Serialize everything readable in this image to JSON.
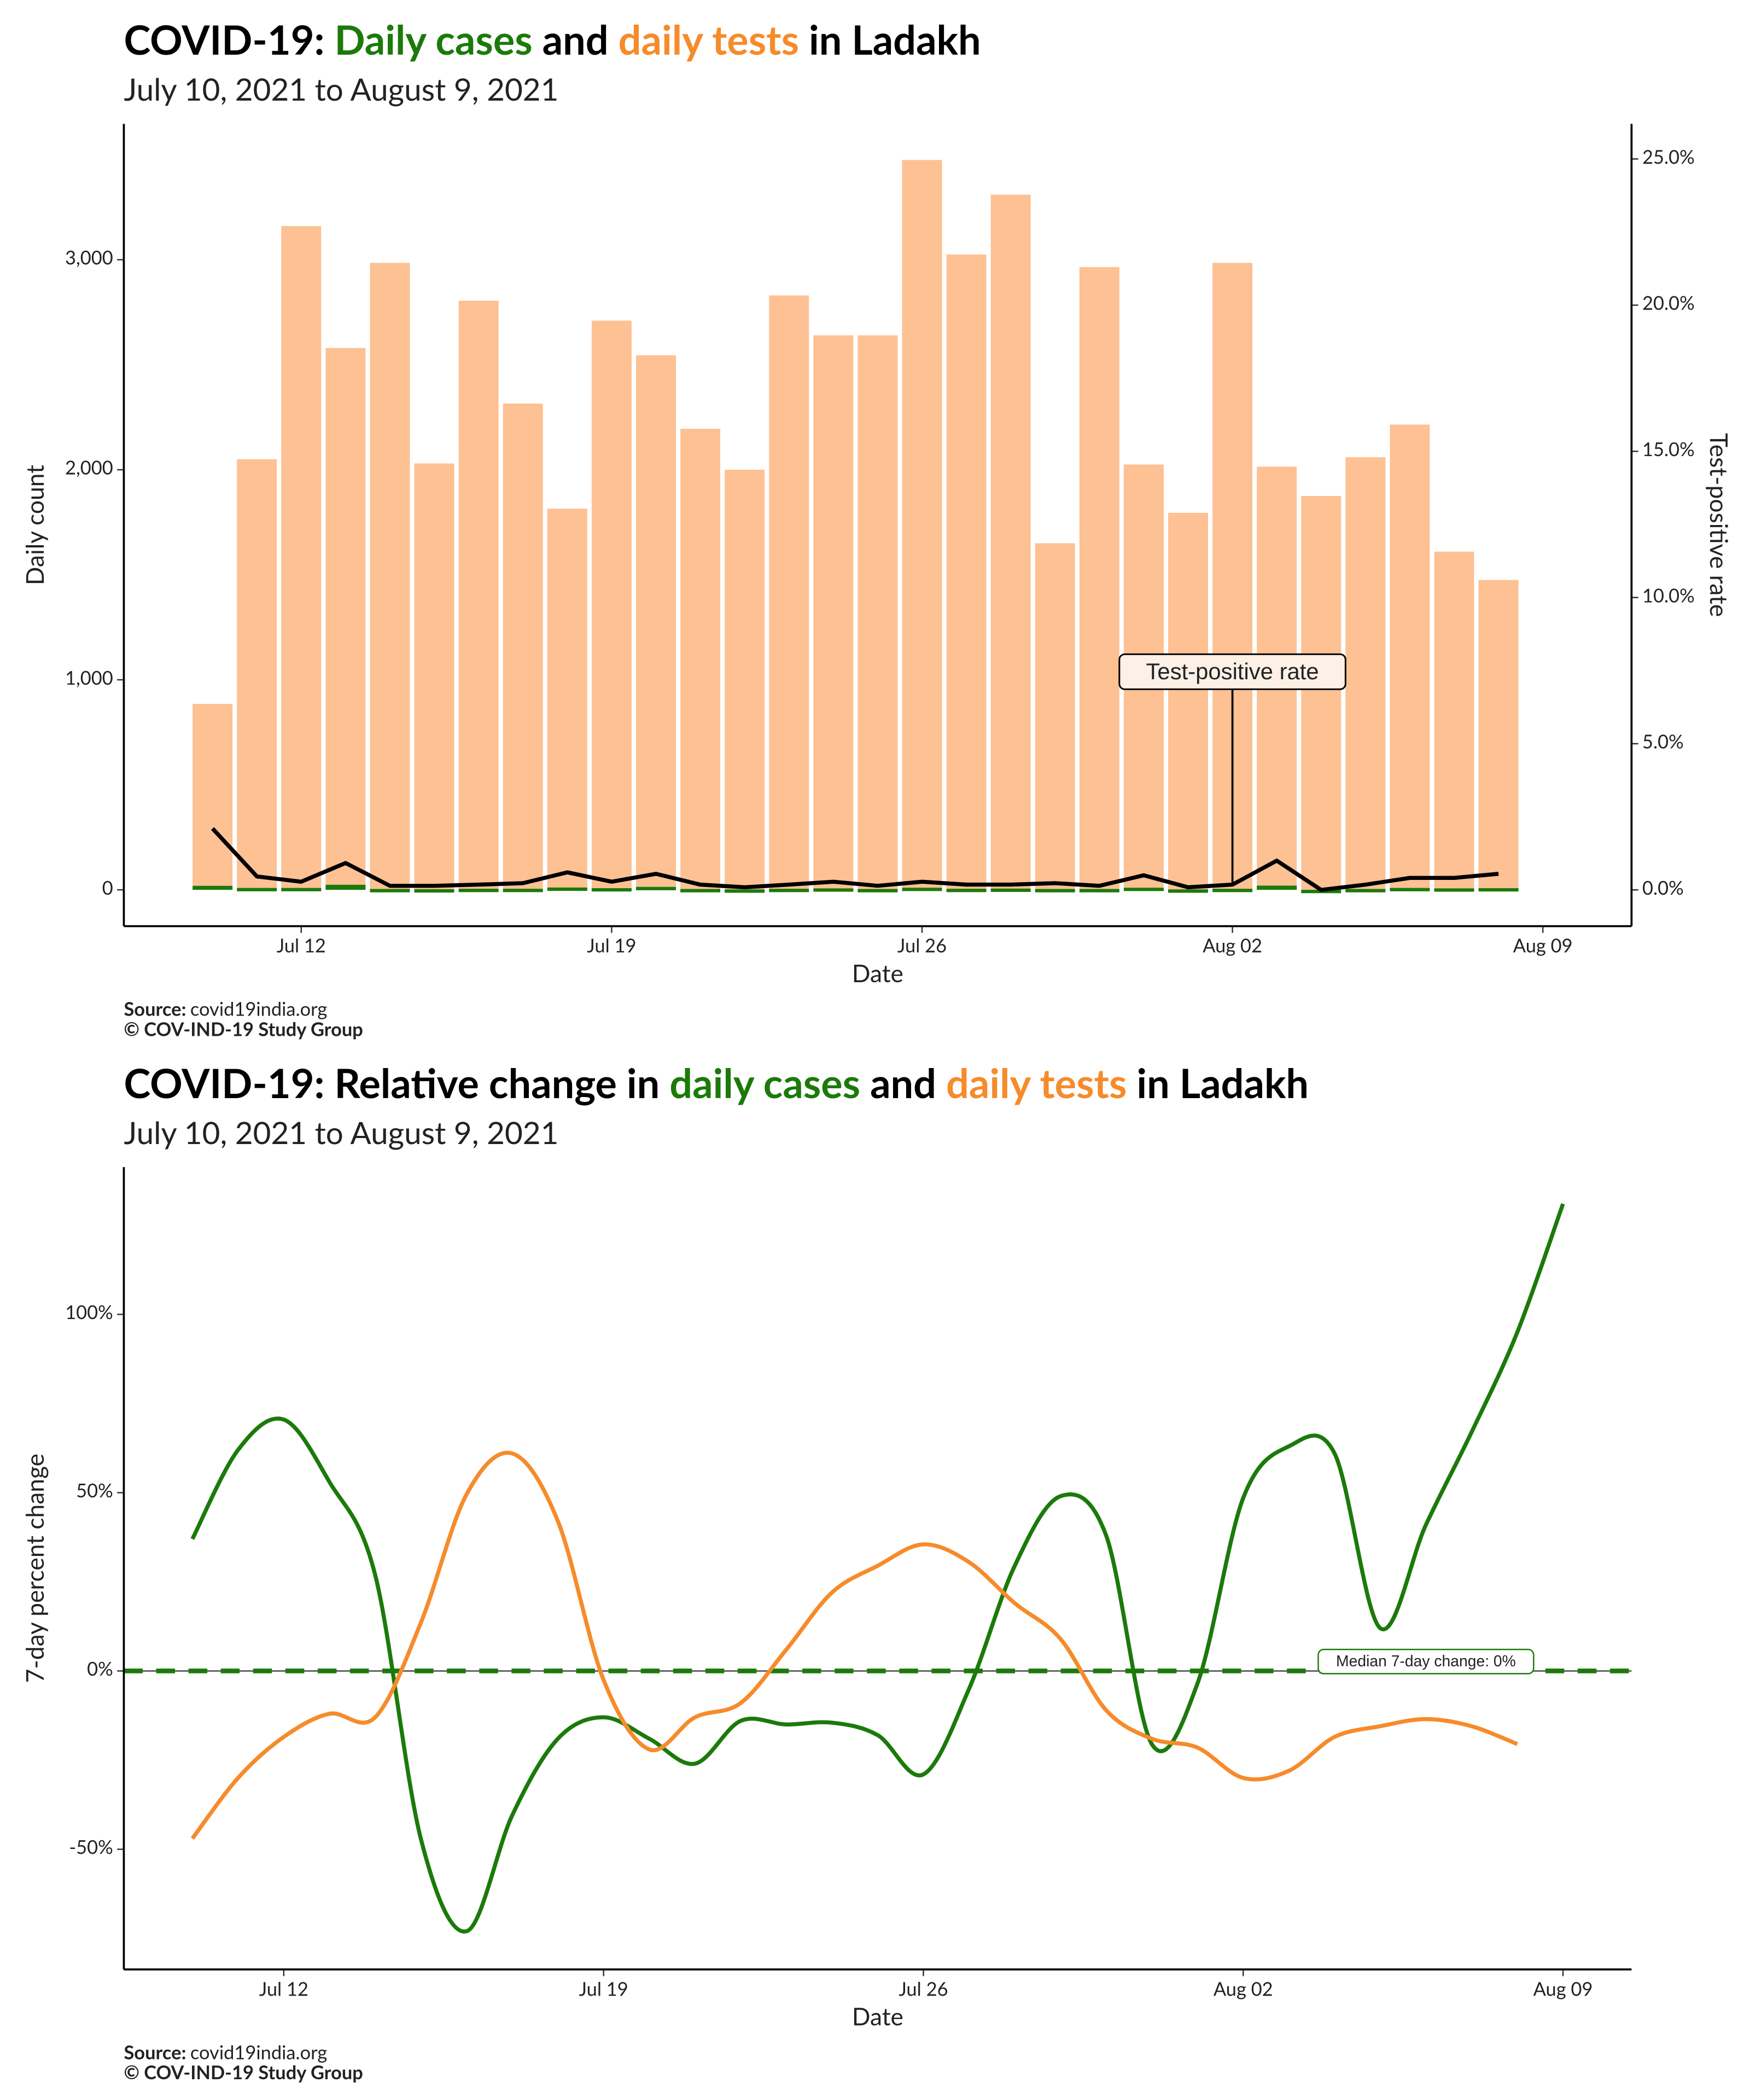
{
  "chart_data": [
    {
      "type": "bar",
      "title": [
        {
          "text": "COVID-19: ",
          "color": "#000000"
        },
        {
          "text": "Daily cases",
          "color": "#1b7a0a"
        },
        {
          "text": " and ",
          "color": "#000000"
        },
        {
          "text": "daily tests",
          "color": "#f68b2b"
        },
        {
          "text": " in Ladakh",
          "color": "#000000"
        }
      ],
      "subtitle": "July 10, 2021 to August  9, 2021",
      "x": [
        "Jul 10",
        "Jul 11",
        "Jul 12",
        "Jul 13",
        "Jul 14",
        "Jul 15",
        "Jul 16",
        "Jul 17",
        "Jul 18",
        "Jul 19",
        "Jul 20",
        "Jul 21",
        "Jul 22",
        "Jul 23",
        "Jul 24",
        "Jul 25",
        "Jul 26",
        "Jul 27",
        "Jul 28",
        "Jul 29",
        "Jul 30",
        "Jul 31",
        "Aug 01",
        "Aug 02",
        "Aug 03",
        "Aug 04",
        "Aug 05",
        "Aug 06",
        "Aug 07",
        "Aug 08"
      ],
      "xlim": [
        "Jul 08",
        "Aug 11"
      ],
      "xticks": [
        "Jul 12",
        "Jul 19",
        "Jul 26",
        "Aug 02",
        "Aug 09"
      ],
      "xlabel": "Date",
      "ylabel": "Daily count",
      "y2label": "Test-positive rate",
      "ylim": [
        -173,
        3647
      ],
      "yticks": [
        0,
        {
          "value": 1000,
          "label": "1,000"
        },
        {
          "value": 2000,
          "label": "2,000"
        },
        {
          "value": 3000,
          "label": "3,000"
        }
      ],
      "y2lim": [
        -1.24,
        26.2
      ],
      "y2ticks": [
        {
          "value": 0,
          "label": "0.0%"
        },
        {
          "value": 5,
          "label": "5.0%"
        },
        {
          "value": 10,
          "label": "10.0%"
        },
        {
          "value": 15,
          "label": "15.0%"
        },
        {
          "value": 20,
          "label": "20.0%"
        },
        {
          "value": 25,
          "label": "25.0%"
        }
      ],
      "series": [
        {
          "color": "#fdc194",
          "values": [
            885,
            2050,
            3160,
            2580,
            2985,
            2030,
            2805,
            2315,
            1815,
            2710,
            2545,
            2195,
            2000,
            2830,
            2640,
            2640,
            3475,
            3025,
            3310,
            1650,
            2965,
            2025,
            1795,
            2985,
            2015,
            1875,
            2060,
            2215,
            1610,
            1475
          ]
        },
        {
          "color": "#1b7a0a",
          "values": [
            19,
            9,
            9,
            24,
            4,
            3,
            5,
            5,
            11,
            8,
            14,
            4,
            2,
            5,
            7,
            4,
            10,
            5,
            6,
            4,
            4,
            10,
            2,
            5,
            20,
            0,
            4,
            9,
            7,
            8
          ]
        },
        {
          "name": "Test-positive rate",
          "type": "line",
          "axis": "y2",
          "color": "#000000",
          "values": [
            2.1,
            0.46,
            0.28,
            0.92,
            0.14,
            0.14,
            0.18,
            0.23,
            0.6,
            0.28,
            0.55,
            0.18,
            0.09,
            0.18,
            0.28,
            0.14,
            0.28,
            0.18,
            0.18,
            0.23,
            0.14,
            0.5,
            0.09,
            0.18,
            1.0,
            0,
            0.18,
            0.41,
            0.41,
            0.55
          ]
        }
      ],
      "source_label": "Source:",
      "source": "covid19india.org",
      "copyright": "© COV-IND-19 Study Group"
    },
    {
      "type": "line",
      "title": [
        {
          "text": "COVID-19: Relative change in ",
          "color": "#000000"
        },
        {
          "text": "daily cases",
          "color": "#1b7a0a"
        },
        {
          "text": " and ",
          "color": "#000000"
        },
        {
          "text": "daily tests",
          "color": "#f68b2b"
        },
        {
          "text": " in Ladakh",
          "color": "#000000"
        }
      ],
      "subtitle": "July 10, 2021 to August  9, 2021",
      "x": [
        "Jul 10",
        "Jul 11",
        "Jul 12",
        "Jul 13",
        "Jul 14",
        "Jul 15",
        "Jul 16",
        "Jul 17",
        "Jul 18",
        "Jul 19",
        "Jul 20",
        "Jul 21",
        "Jul 22",
        "Jul 23",
        "Jul 24",
        "Jul 25",
        "Jul 26",
        "Jul 27",
        "Jul 28",
        "Jul 29",
        "Jul 30",
        "Jul 31",
        "Aug 01",
        "Aug 02",
        "Aug 03",
        "Aug 04",
        "Aug 05",
        "Aug 06",
        "Aug 07",
        "Aug 08",
        "Aug 09"
      ],
      "xticks": [
        "Jul 12",
        "Jul 19",
        "Jul 26",
        "Aug 02",
        "Aug 09"
      ],
      "xlabel": "Date",
      "ylabel": "7-day percent change",
      "ylim": [
        -83.7,
        141.3
      ],
      "yticks": [
        {
          "value": -50,
          "label": "-50%"
        },
        {
          "value": 0,
          "label": "0%"
        },
        {
          "value": 50,
          "label": "50%"
        },
        {
          "value": 100,
          "label": "100%"
        }
      ],
      "hline": {
        "value": 0,
        "label": "Median 7-day change: 0%",
        "color": "#1b7a0a"
      },
      "series": [
        {
          "color": "#1b7a0a",
          "values": [
            37,
            62,
            70.5,
            53,
            27,
            -47,
            -73,
            -40.5,
            -19,
            -13,
            -19,
            -26,
            -14,
            -15,
            -14.5,
            -18,
            -29,
            -5,
            29.5,
            49,
            38,
            -20.5,
            -3.5,
            48.5,
            63,
            61,
            12,
            41,
            67,
            95,
            131
          ]
        },
        {
          "color": "#f68b2b",
          "values": [
            -47,
            -30,
            -18.5,
            -12,
            -13,
            13.5,
            49.5,
            61,
            42,
            -2.5,
            -22,
            -13,
            -9,
            6,
            22,
            29.5,
            35.5,
            30.5,
            19,
            9,
            -11,
            -19,
            -21.5,
            -30,
            -28,
            -18.5,
            -15.5,
            -13.5,
            -15.5,
            -20.5,
            null
          ]
        }
      ],
      "source_label": "Source:",
      "source": "covid19india.org",
      "copyright": "© COV-IND-19 Study Group"
    }
  ]
}
